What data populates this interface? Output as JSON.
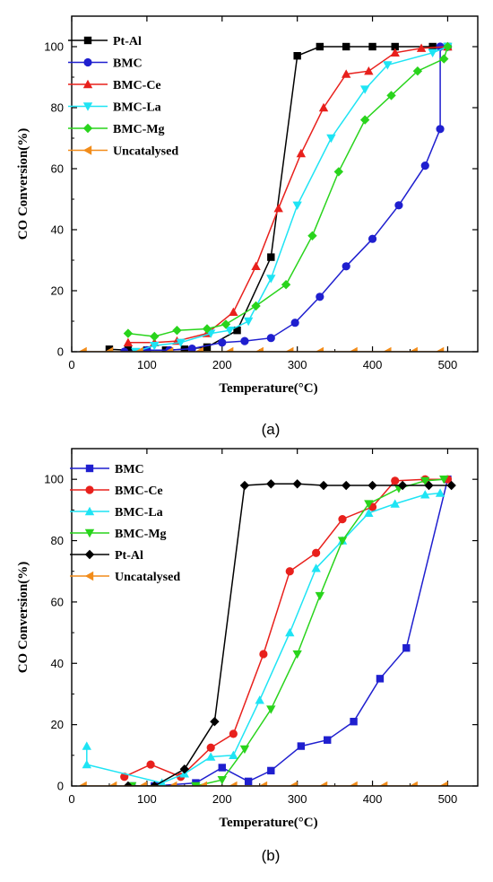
{
  "chart_data": [
    {
      "type": "line",
      "panel_label": "(a)",
      "xlabel": "Temperature(°C)",
      "ylabel": "CO Conversion(%)",
      "xlim": [
        0,
        540
      ],
      "ylim": [
        0,
        110
      ],
      "xticks": [
        0,
        100,
        200,
        300,
        400,
        500
      ],
      "yticks": [
        0,
        20,
        40,
        60,
        80,
        100
      ],
      "legend_position": "top-left",
      "series": [
        {
          "name": "Pt-Al",
          "color": "#000000",
          "marker": "square",
          "x": [
            50,
            75,
            100,
            125,
            150,
            180,
            220,
            265,
            300,
            330,
            365,
            400,
            430,
            480,
            500
          ],
          "y": [
            0.8,
            0.5,
            0.5,
            0.5,
            0.8,
            1.5,
            7,
            31,
            97,
            100,
            100,
            100,
            100,
            100,
            100
          ]
        },
        {
          "name": "BMC",
          "color": "#1f1fcf",
          "marker": "circle",
          "x": [
            70,
            100,
            130,
            160,
            200,
            230,
            265,
            297,
            330,
            365,
            400,
            435,
            470,
            490,
            490,
            500
          ],
          "y": [
            0,
            0.5,
            0.5,
            1,
            3,
            3.5,
            4.5,
            9.5,
            18,
            28,
            37,
            48,
            61,
            73,
            100,
            100
          ]
        },
        {
          "name": "BMC-Ce",
          "color": "#e8201c",
          "marker": "triangle-up",
          "x": [
            75,
            110,
            140,
            180,
            215,
            245,
            275,
            305,
            335,
            365,
            395,
            430,
            465,
            500
          ],
          "y": [
            3,
            3,
            3.5,
            6,
            13,
            28,
            47,
            65,
            80,
            91,
            92,
            98,
            99.5,
            100
          ]
        },
        {
          "name": "BMC-La",
          "color": "#1ee4f4",
          "marker": "triangle-down",
          "x": [
            85,
            110,
            145,
            185,
            210,
            235,
            265,
            300,
            345,
            390,
            420,
            480,
            500
          ],
          "y": [
            0,
            2,
            3,
            6,
            7,
            10,
            24,
            48,
            70,
            86,
            94,
            98,
            100
          ]
        },
        {
          "name": "BMC-Mg",
          "color": "#29d41c",
          "marker": "diamond",
          "x": [
            75,
            110,
            140,
            180,
            205,
            245,
            285,
            320,
            355,
            390,
            425,
            460,
            495,
            500
          ],
          "y": [
            6,
            5,
            7,
            7.5,
            9,
            15,
            22,
            38,
            59,
            76,
            84,
            92,
            96,
            100
          ]
        },
        {
          "name": "Uncatalysed",
          "color": "#f28c1a",
          "marker": "triangle-left",
          "x": [
            15,
            50,
            90,
            130,
            170,
            210,
            250,
            290,
            330,
            375,
            420,
            455,
            490
          ],
          "y": [
            0,
            0,
            0,
            0,
            0,
            0,
            0,
            0,
            0,
            0,
            0,
            0,
            0
          ]
        }
      ]
    },
    {
      "type": "line",
      "panel_label": "(b)",
      "xlabel": "Temperature(°C)",
      "ylabel": "CO Conversion(%)",
      "xlim": [
        0,
        540
      ],
      "ylim": [
        0,
        110
      ],
      "xticks": [
        0,
        100,
        200,
        300,
        400,
        500
      ],
      "yticks": [
        0,
        20,
        40,
        60,
        80,
        100
      ],
      "legend_position": "top-left",
      "series": [
        {
          "name": "BMC",
          "color": "#1f1fcf",
          "marker": "square",
          "x": [
            80,
            110,
            165,
            200,
            235,
            265,
            305,
            340,
            375,
            410,
            445,
            500
          ],
          "y": [
            0,
            0,
            1,
            6,
            1.5,
            5,
            13,
            15,
            21,
            35,
            45,
            100
          ]
        },
        {
          "name": "BMC-Ce",
          "color": "#e8201c",
          "marker": "circle",
          "x": [
            70,
            105,
            145,
            185,
            215,
            255,
            290,
            325,
            360,
            400,
            430,
            470,
            500
          ],
          "y": [
            3,
            7,
            3,
            12.5,
            17,
            43,
            70,
            76,
            87,
            91,
            99.5,
            100,
            100
          ]
        },
        {
          "name": "BMC-La",
          "color": "#1ee4f4",
          "marker": "triangle-up",
          "x": [
            20,
            20,
            120,
            150,
            185,
            215,
            250,
            290,
            325,
            360,
            395,
            430,
            470,
            490
          ],
          "y": [
            13,
            7,
            1,
            4,
            9.5,
            10,
            28,
            50,
            71,
            80,
            89,
            92,
            95,
            95.5
          ]
        },
        {
          "name": "BMC-Mg",
          "color": "#29d41c",
          "marker": "triangle-down",
          "x": [
            80,
            125,
            145,
            165,
            200,
            230,
            265,
            300,
            330,
            360,
            395,
            435,
            470,
            495
          ],
          "y": [
            0,
            -4,
            -4,
            0,
            2,
            12,
            25,
            43,
            62,
            80,
            92,
            97,
            99.5,
            100
          ]
        },
        {
          "name": "Pt-Al",
          "color": "#000000",
          "marker": "diamond",
          "x": [
            75,
            110,
            150,
            190,
            230,
            265,
            300,
            335,
            365,
            400,
            440,
            475,
            505
          ],
          "y": [
            0,
            0,
            5.5,
            21,
            98,
            98.5,
            98.5,
            98,
            98,
            98,
            98,
            98,
            98
          ]
        },
        {
          "name": "Uncatalysed",
          "color": "#f28c1a",
          "marker": "triangle-left",
          "x": [
            15,
            55,
            95,
            135,
            175,
            215,
            255,
            295,
            335,
            375,
            415,
            455,
            495
          ],
          "y": [
            0,
            0,
            0,
            0,
            0,
            0,
            0,
            0,
            0,
            0,
            0,
            0,
            0
          ]
        }
      ]
    }
  ]
}
